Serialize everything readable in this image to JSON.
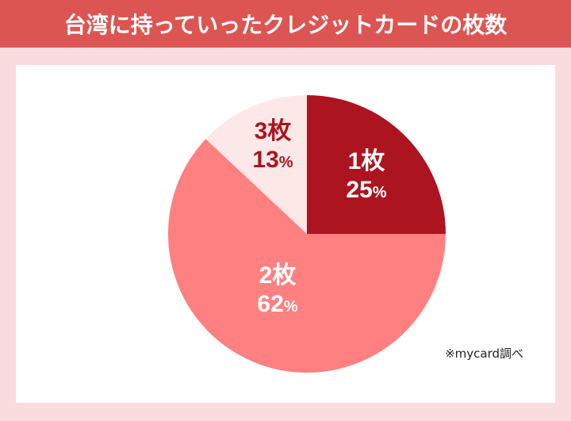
{
  "header": {
    "title": "台湾に持っていったクレジットカードの枚数"
  },
  "source_note": "※mycard調べ",
  "colors": {
    "header_bg": "#dd5552",
    "page_bg": "#fadcdf",
    "panel_bg": "#ffffff",
    "slice_1": "#ac1420",
    "slice_2": "#ff8080",
    "slice_3": "#fde8e8"
  },
  "slices": [
    {
      "label": "1枚",
      "percent": "25",
      "unit": "%"
    },
    {
      "label": "2枚",
      "percent": "62",
      "unit": "%"
    },
    {
      "label": "3枚",
      "percent": "13",
      "unit": "%"
    }
  ],
  "chart_data": {
    "type": "pie",
    "title": "台湾に持っていったクレジットカードの枚数",
    "categories": [
      "1枚",
      "2枚",
      "3枚"
    ],
    "values": [
      25,
      62,
      13
    ],
    "unit": "%",
    "colors": [
      "#ac1420",
      "#ff8080",
      "#fde8e8"
    ],
    "start_angle": "12 o'clock, clockwise",
    "annotations": [
      "※mycard調べ"
    ],
    "legend": "none (labels inside slices)"
  }
}
